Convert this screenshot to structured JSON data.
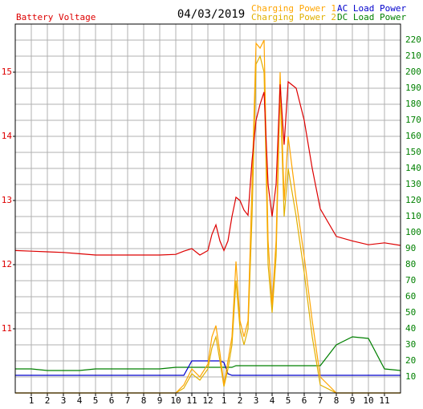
{
  "chart_data": {
    "type": "line",
    "title": "04/03/2019",
    "x": [
      0,
      1,
      2,
      3,
      4,
      5,
      6,
      7,
      8,
      9,
      10,
      10.5,
      11,
      11.5,
      12,
      12.25,
      12.5,
      12.75,
      13,
      13.25,
      13.5,
      13.75,
      14,
      14.25,
      14.5,
      14.75,
      15,
      15.25,
      15.5,
      15.75,
      16,
      16.25,
      16.5,
      16.75,
      17,
      17.5,
      18,
      18.5,
      19,
      20,
      21,
      22,
      23,
      24
    ],
    "xlim": [
      0,
      24
    ],
    "xticks": [
      {
        "value": 1,
        "label": "1"
      },
      {
        "value": 2,
        "label": "2"
      },
      {
        "value": 3,
        "label": "3"
      },
      {
        "value": 4,
        "label": "4"
      },
      {
        "value": 5,
        "label": "5"
      },
      {
        "value": 6,
        "label": "6"
      },
      {
        "value": 7,
        "label": "7"
      },
      {
        "value": 8,
        "label": "8"
      },
      {
        "value": 9,
        "label": "9"
      },
      {
        "value": 10,
        "label": "10"
      },
      {
        "value": 11,
        "label": "11"
      },
      {
        "value": 12,
        "label": "12"
      },
      {
        "value": 13,
        "label": "1"
      },
      {
        "value": 14,
        "label": "2"
      },
      {
        "value": 15,
        "label": "3"
      },
      {
        "value": 16,
        "label": "4"
      },
      {
        "value": 17,
        "label": "5"
      },
      {
        "value": 18,
        "label": "6"
      },
      {
        "value": 19,
        "label": "7"
      },
      {
        "value": 20,
        "label": "8"
      },
      {
        "value": 21,
        "label": "9"
      },
      {
        "value": 22,
        "label": "10"
      },
      {
        "value": 23,
        "label": "11"
      }
    ],
    "ylim": [
      10,
      15.75
    ],
    "yticks": [
      11,
      12,
      13,
      14,
      15
    ],
    "y2lim": [
      0,
      230
    ],
    "y2ticks": [
      10,
      20,
      30,
      40,
      50,
      60,
      70,
      80,
      90,
      100,
      110,
      120,
      130,
      140,
      150,
      160,
      170,
      180,
      190,
      200,
      210,
      220
    ],
    "grid": true,
    "series": [
      {
        "name": "Battery Voltage",
        "color": "#dd0000",
        "values": [
          12.22,
          12.21,
          12.2,
          12.19,
          12.17,
          12.15,
          12.15,
          12.15,
          12.15,
          12.15,
          12.16,
          12.21,
          12.25,
          12.15,
          12.22,
          12.47,
          12.62,
          12.37,
          12.22,
          12.37,
          12.75,
          13.05,
          13.0,
          12.85,
          12.77,
          13.62,
          14.25,
          14.5,
          14.69,
          13.25,
          12.75,
          13.25,
          14.81,
          13.87,
          14.85,
          14.75,
          14.25,
          13.5,
          12.87,
          12.44,
          12.37,
          12.31,
          12.34,
          12.3
        ]
      },
      {
        "name": "Charging Power 1",
        "color": "#ffa500",
        "axis": "y2",
        "values": [
          0,
          0,
          0,
          0,
          0,
          0,
          0,
          0,
          0,
          0,
          0,
          5,
          15,
          10,
          18,
          35,
          42,
          25,
          5,
          20,
          35,
          82,
          45,
          35,
          45,
          130,
          218,
          215,
          220,
          95,
          55,
          95,
          200,
          120,
          160,
          120,
          85,
          45,
          10,
          0,
          0,
          0,
          0,
          0
        ]
      },
      {
        "name": "Charging Power 2",
        "color": "#e0b000",
        "axis": "y2",
        "values": [
          0,
          0,
          0,
          0,
          0,
          0,
          0,
          0,
          0,
          0,
          0,
          3,
          12,
          8,
          15,
          28,
          35,
          20,
          4,
          15,
          30,
          70,
          40,
          30,
          40,
          110,
          205,
          210,
          200,
          80,
          50,
          85,
          190,
          110,
          140,
          110,
          75,
          35,
          5,
          0,
          0,
          0,
          0,
          0
        ]
      },
      {
        "name": "AC Load Power",
        "color": "#0000cc",
        "axis": "y2",
        "values": [
          11,
          11,
          11,
          11,
          11,
          11,
          11,
          11,
          11,
          11,
          11,
          11,
          20,
          20,
          20,
          20,
          20,
          20,
          19,
          12,
          11,
          11,
          11,
          11,
          11,
          11,
          11,
          11,
          11,
          11,
          11,
          11,
          11,
          11,
          11,
          11,
          11,
          11,
          11,
          11,
          11,
          11,
          11,
          11
        ]
      },
      {
        "name": "DC Load Power",
        "color": "#008000",
        "axis": "y2",
        "values": [
          15,
          15,
          14,
          14,
          14,
          15,
          15,
          15,
          15,
          15,
          16,
          16,
          16,
          16,
          16,
          16,
          16,
          16,
          16,
          16,
          16,
          17,
          17,
          17,
          17,
          17,
          17,
          17,
          17,
          17,
          17,
          17,
          17,
          17,
          17,
          17,
          17,
          17,
          17,
          30,
          35,
          34,
          15,
          14
        ]
      }
    ]
  }
}
